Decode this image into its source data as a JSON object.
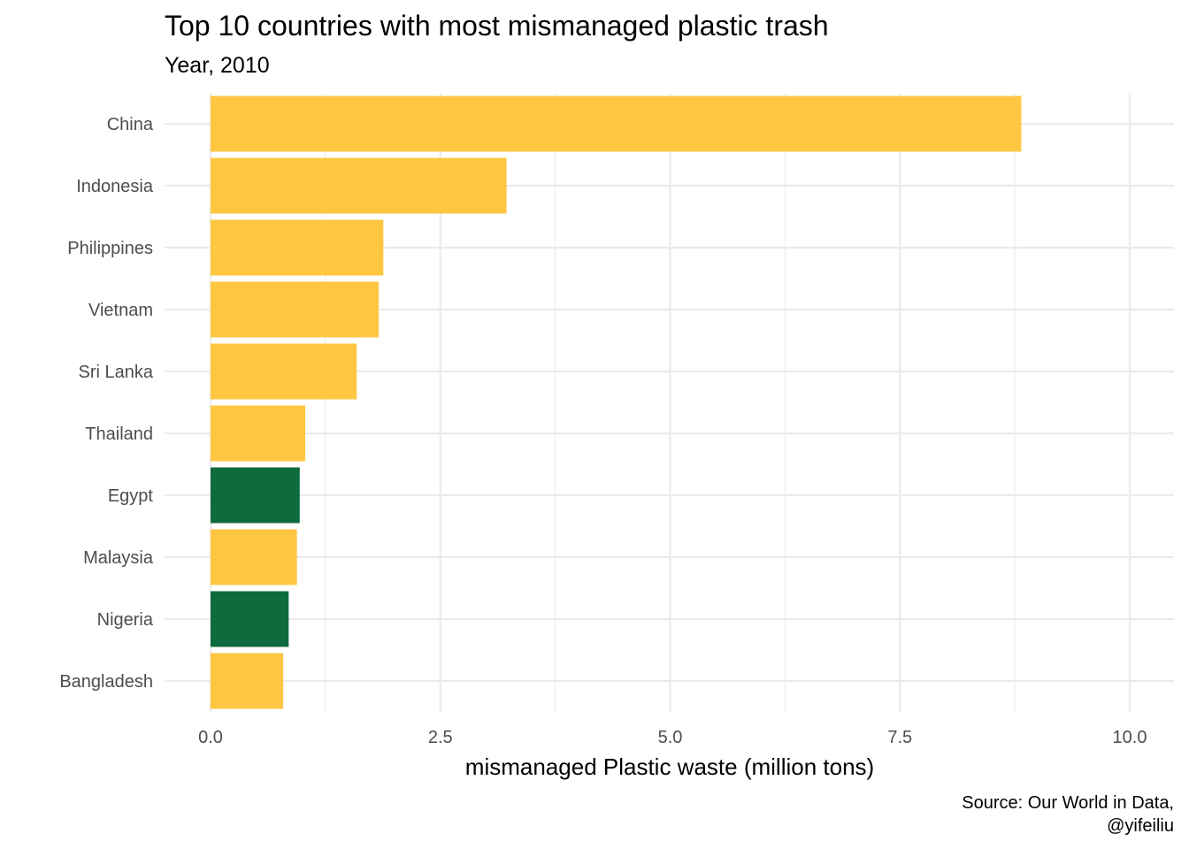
{
  "chart_data": {
    "type": "bar",
    "orientation": "horizontal",
    "title": "Top 10 countries with most mismanaged plastic trash",
    "subtitle": "Year, 2010",
    "xlabel": "mismanaged Plastic waste (million tons)",
    "ylabel": "",
    "xlim": [
      0,
      10.5
    ],
    "x_ticks": [
      "0.0",
      "2.5",
      "5.0",
      "7.5",
      "10.0"
    ],
    "x_tick_values": [
      0,
      2.5,
      5,
      7.5,
      10
    ],
    "x_minor_tick_values": [
      1.25,
      3.75,
      6.25,
      8.75
    ],
    "grid": true,
    "categories": [
      "China",
      "Indonesia",
      "Philippines",
      "Vietnam",
      "Sri Lanka",
      "Thailand",
      "Egypt",
      "Malaysia",
      "Nigeria",
      "Bangladesh"
    ],
    "values": [
      8.82,
      3.22,
      1.88,
      1.83,
      1.59,
      1.03,
      0.97,
      0.94,
      0.85,
      0.79
    ],
    "bar_colors": [
      "#ffc641",
      "#ffc641",
      "#ffc641",
      "#ffc641",
      "#ffc641",
      "#ffc641",
      "#0d6b3d",
      "#ffc641",
      "#0d6b3d",
      "#ffc641"
    ],
    "caption_lines": [
      "Source: Our World in Data,",
      "@yifeiliu"
    ]
  }
}
